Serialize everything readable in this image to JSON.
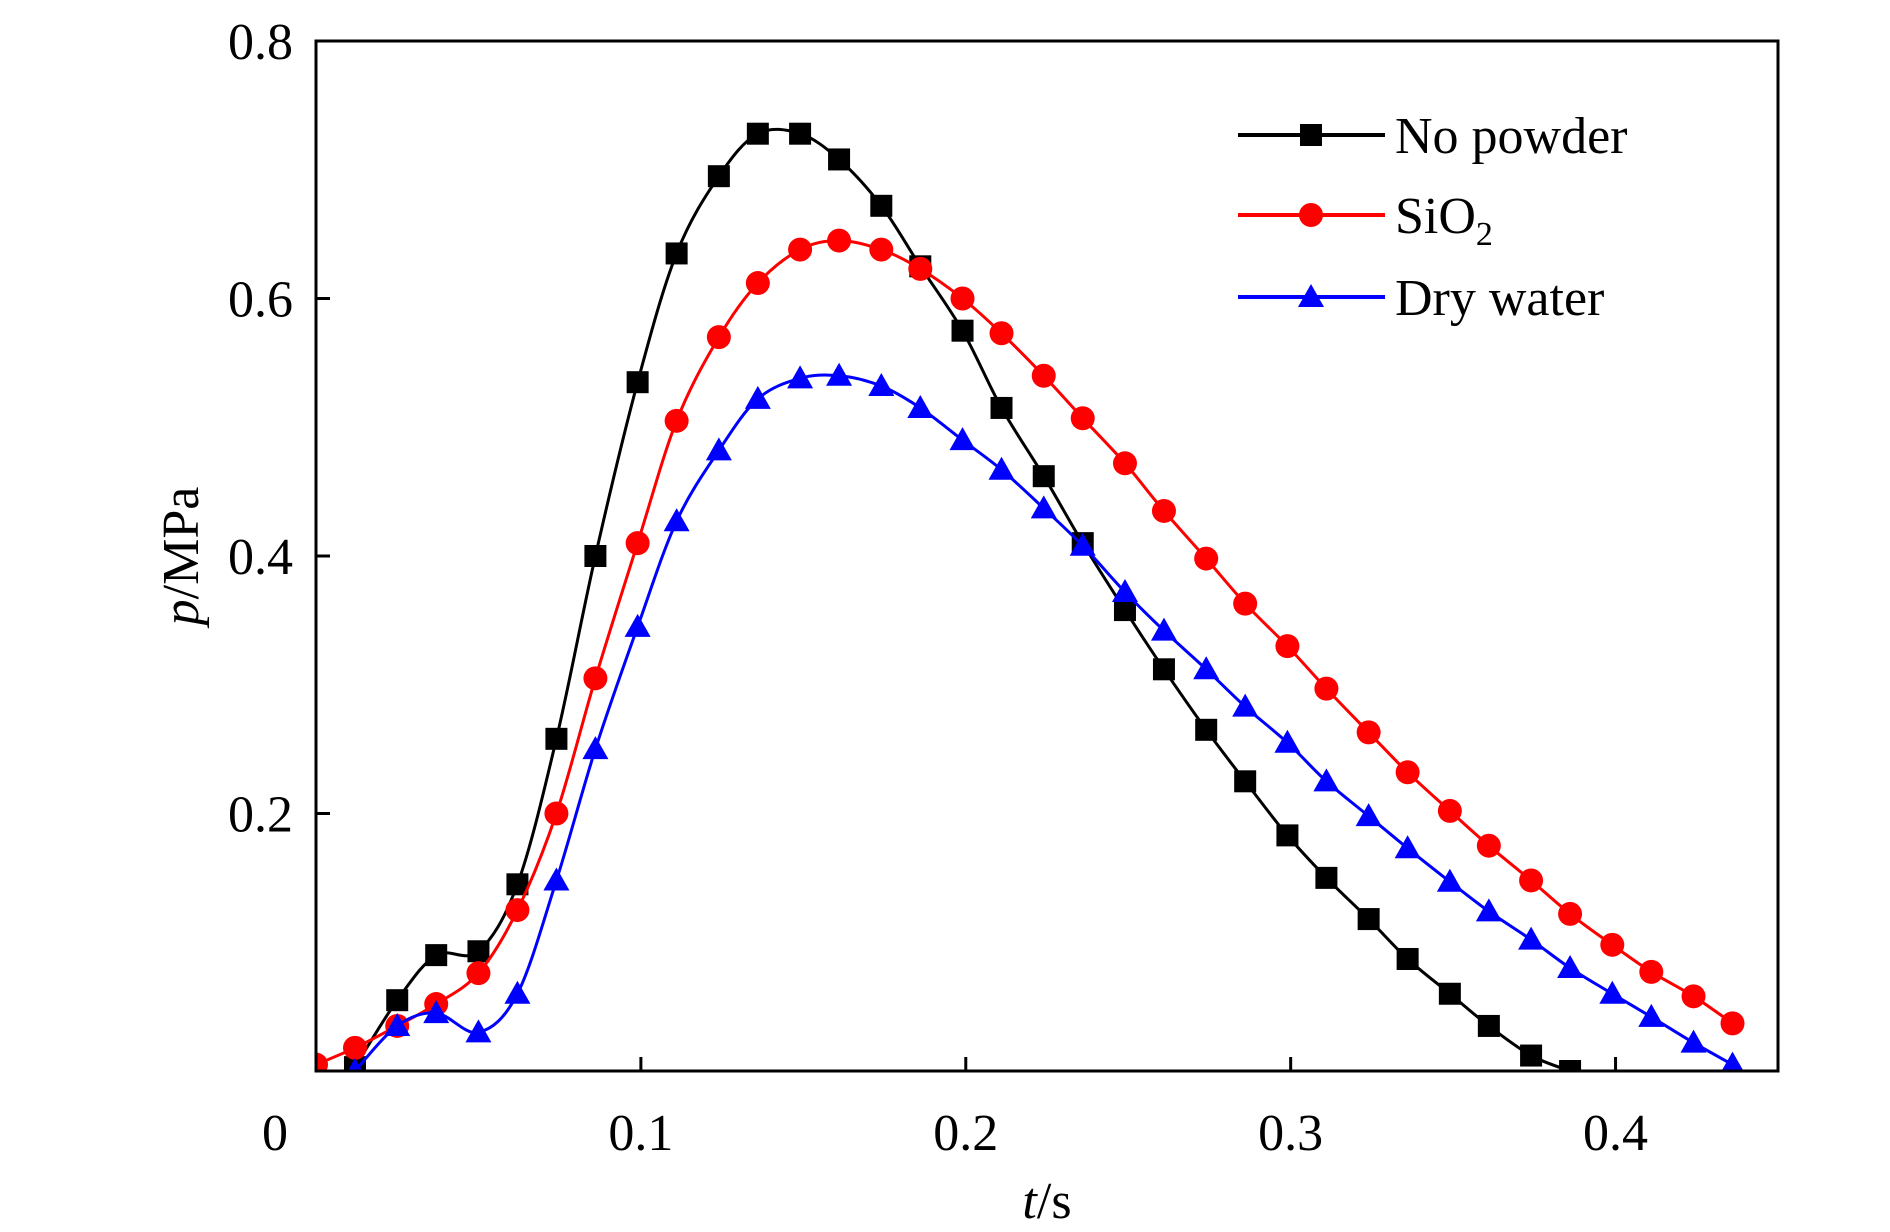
{
  "chart_data": {
    "type": "line",
    "title": "",
    "xlabel": {
      "var": "t",
      "unit": "/s"
    },
    "ylabel": {
      "var": "p",
      "unit": "/MPa"
    },
    "xlim": [
      0,
      0.45
    ],
    "ylim": [
      0,
      0.8
    ],
    "xticks": [
      0,
      0.1,
      0.2,
      0.3,
      0.4
    ],
    "xtick_labels": [
      "0",
      "0.1",
      "0.2",
      "0.3",
      "0.4"
    ],
    "yticks": [
      0.2,
      0.4,
      0.6,
      0.8
    ],
    "ytick_labels": [
      "0.2",
      "0.4",
      "0.6",
      "0.8"
    ],
    "grid": false,
    "legend_position": "top-right",
    "series": [
      {
        "name": "No powder",
        "legend": {
          "main": "No powder",
          "sub": ""
        },
        "color": "#000000",
        "marker": "square",
        "x": [
          0.012,
          0.025,
          0.037,
          0.05,
          0.062,
          0.074,
          0.086,
          0.099,
          0.111,
          0.124,
          0.136,
          0.149,
          0.161,
          0.174,
          0.186,
          0.199,
          0.211,
          0.224,
          0.236,
          0.249,
          0.261,
          0.274,
          0.286,
          0.299,
          0.311,
          0.324,
          0.336,
          0.349,
          0.361,
          0.374,
          0.386
        ],
        "y": [
          0.003,
          0.055,
          0.09,
          0.093,
          0.145,
          0.258,
          0.4,
          0.535,
          0.635,
          0.695,
          0.728,
          0.728,
          0.708,
          0.672,
          0.625,
          0.575,
          0.515,
          0.462,
          0.41,
          0.358,
          0.312,
          0.265,
          0.225,
          0.183,
          0.15,
          0.118,
          0.087,
          0.06,
          0.035,
          0.012,
          0.0
        ]
      },
      {
        "name": "SiO2",
        "legend": {
          "main": "SiO",
          "sub": "2"
        },
        "color": "#ff0000",
        "marker": "circle",
        "x": [
          0.0,
          0.012,
          0.025,
          0.037,
          0.05,
          0.062,
          0.074,
          0.086,
          0.099,
          0.111,
          0.124,
          0.136,
          0.149,
          0.161,
          0.174,
          0.186,
          0.199,
          0.211,
          0.224,
          0.236,
          0.249,
          0.261,
          0.274,
          0.286,
          0.299,
          0.311,
          0.324,
          0.336,
          0.349,
          0.361,
          0.374,
          0.386,
          0.399,
          0.411,
          0.424,
          0.436
        ],
        "y": [
          0.005,
          0.018,
          0.035,
          0.052,
          0.076,
          0.125,
          0.2,
          0.305,
          0.41,
          0.505,
          0.57,
          0.612,
          0.638,
          0.645,
          0.638,
          0.623,
          0.6,
          0.573,
          0.54,
          0.507,
          0.472,
          0.435,
          0.398,
          0.363,
          0.33,
          0.297,
          0.263,
          0.232,
          0.202,
          0.175,
          0.148,
          0.122,
          0.098,
          0.077,
          0.058,
          0.037
        ]
      },
      {
        "name": "Dry water",
        "legend": {
          "main": "Dry water",
          "sub": ""
        },
        "color": "#0000ff",
        "marker": "triangle",
        "x": [
          0.012,
          0.025,
          0.037,
          0.05,
          0.062,
          0.074,
          0.086,
          0.099,
          0.111,
          0.124,
          0.136,
          0.149,
          0.161,
          0.174,
          0.186,
          0.199,
          0.211,
          0.224,
          0.236,
          0.249,
          0.261,
          0.274,
          0.286,
          0.299,
          0.311,
          0.324,
          0.336,
          0.349,
          0.361,
          0.374,
          0.386,
          0.399,
          0.411,
          0.424,
          0.436
        ],
        "y": [
          0.0,
          0.035,
          0.045,
          0.03,
          0.06,
          0.148,
          0.25,
          0.345,
          0.427,
          0.482,
          0.522,
          0.538,
          0.54,
          0.532,
          0.515,
          0.49,
          0.467,
          0.437,
          0.408,
          0.372,
          0.342,
          0.312,
          0.283,
          0.255,
          0.225,
          0.198,
          0.173,
          0.147,
          0.124,
          0.102,
          0.08,
          0.06,
          0.042,
          0.022,
          0.005
        ]
      }
    ]
  }
}
